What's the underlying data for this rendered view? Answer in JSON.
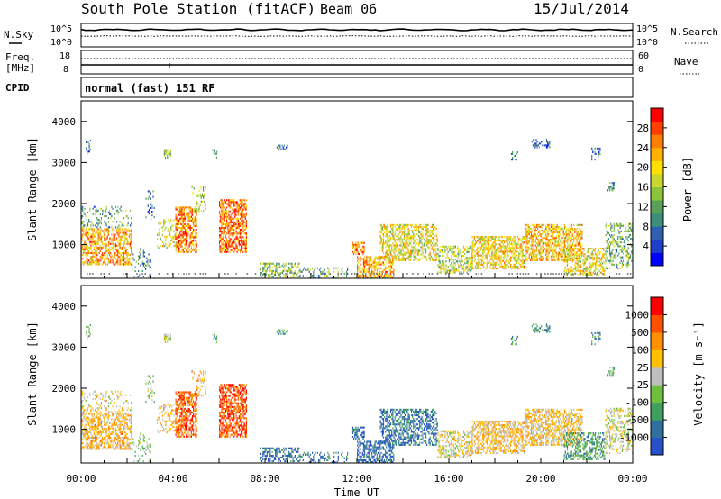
{
  "header": {
    "station": "South Pole Station (fitACF)",
    "beam": "Beam 06",
    "date": "15/Jul/2014"
  },
  "top_panels": {
    "nsky_label": "N.Sky",
    "nsky_ticks": [
      "10^5",
      "10^0"
    ],
    "nsearch_label": "N.Search",
    "nsearch_ticks": [
      "10^5",
      "10^0"
    ],
    "freq_label_line1": "Freq.",
    "freq_label_line2": "[MHz]",
    "freq_ticks": [
      "18",
      "8"
    ],
    "nave_label": "Nave",
    "nave_ticks": [
      "60",
      "0"
    ],
    "cpid_label": "CPID",
    "cpid_value": "normal (fast) 151 RF"
  },
  "chart_data": [
    {
      "type": "heatmap",
      "name": "power",
      "ylabel": "Slant Range [km]",
      "yticks": [
        "4000",
        "3000",
        "2000",
        "1000"
      ],
      "ytick_values": [
        4000,
        3000,
        2000,
        1000
      ],
      "ylim": [
        180,
        4500
      ],
      "xlim": [
        0,
        24
      ],
      "colorbar_label": "Power [dB]",
      "colorbar_ticks": [
        "28",
        "24",
        "20",
        "16",
        "12",
        "8",
        "4"
      ],
      "colorbar_colors": [
        "#0000ff",
        "#1f3fc8",
        "#2f5fb0",
        "#3d8f7a",
        "#5aa05a",
        "#8cc43c",
        "#c8d830",
        "#ffe000",
        "#ffb000",
        "#ff8000",
        "#ff4000",
        "#ff0000"
      ]
    },
    {
      "type": "heatmap",
      "name": "velocity",
      "ylabel": "Slant Range [km]",
      "yticks": [
        "4000",
        "3000",
        "2000",
        "1000"
      ],
      "ytick_values": [
        4000,
        3000,
        2000,
        1000
      ],
      "ylim": [
        180,
        4500
      ],
      "xlim": [
        0,
        24
      ],
      "xlabel": "Time UT",
      "xticks": [
        "00:00",
        "04:00",
        "08:00",
        "12:00",
        "16:00",
        "20:00",
        "00:00"
      ],
      "xtick_values": [
        0,
        4,
        8,
        12,
        16,
        20,
        24
      ],
      "colorbar_label": "Velocity [m s⁻¹]",
      "colorbar_ticks": [
        "1000",
        "500",
        "100",
        "25",
        "-25",
        "-100",
        "-500",
        "-1000"
      ],
      "colorbar_colors": [
        "#2850c8",
        "#3070a0",
        "#40a060",
        "#70c040",
        "#c0c0c0",
        "#ffc000",
        "#ff9000",
        "#ff5000",
        "#ff0000"
      ]
    }
  ],
  "colors": {
    "frame": "#000000",
    "ground_scatter": "#7f7f7f"
  }
}
